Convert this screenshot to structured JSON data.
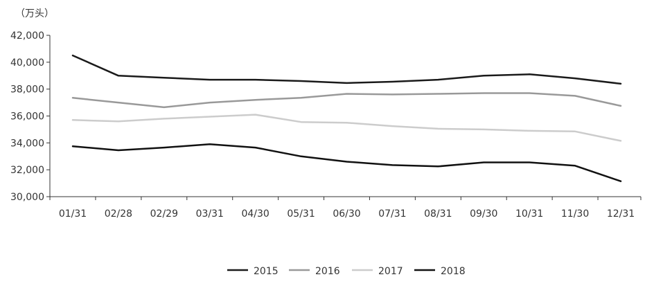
{
  "chart_data": {
    "type": "line",
    "unit_label": "（万头）",
    "categories": [
      "01/31",
      "02/28",
      "02/29",
      "03/31",
      "04/30",
      "05/31",
      "06/30",
      "07/31",
      "08/31",
      "09/30",
      "10/31",
      "11/30",
      "12/31"
    ],
    "y_ticks": [
      "30,000",
      "32,000",
      "34,000",
      "36,000",
      "38,000",
      "40,000",
      "42,000"
    ],
    "y_tick_values": [
      30000,
      32000,
      34000,
      36000,
      38000,
      40000,
      42000
    ],
    "ylim": [
      30000,
      42000
    ],
    "grid": false,
    "legend_position": "bottom",
    "series": [
      {
        "name": "2015",
        "color": "#1a1a1a",
        "values": [
          40500,
          39000,
          38850,
          38700,
          38700,
          38600,
          38450,
          38550,
          38700,
          39000,
          39100,
          38800,
          38400
        ]
      },
      {
        "name": "2016",
        "color": "#999999",
        "values": [
          37350,
          37000,
          36650,
          37000,
          37200,
          37350,
          37650,
          37600,
          37650,
          37700,
          37700,
          37500,
          36750
        ]
      },
      {
        "name": "2017",
        "color": "#cccccc",
        "values": [
          35700,
          35600,
          35800,
          35950,
          36100,
          35550,
          35500,
          35250,
          35050,
          35000,
          34900,
          34850,
          34150
        ]
      },
      {
        "name": "2018",
        "color": "#111111",
        "values": [
          33750,
          33450,
          33650,
          33900,
          33650,
          33000,
          32600,
          32350,
          32250,
          32550,
          32550,
          32300,
          31150
        ]
      }
    ]
  }
}
